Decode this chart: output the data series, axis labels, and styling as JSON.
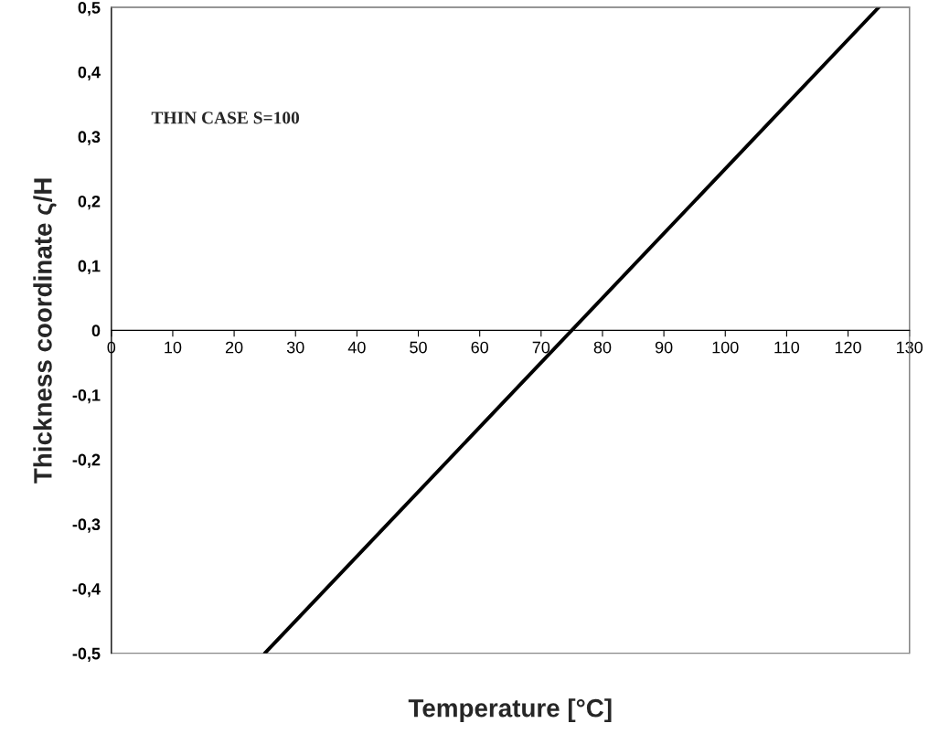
{
  "chart_data": {
    "type": "line",
    "xlabel": "Temperature [°C]",
    "ylabel": "Thickness coordinate ς/H",
    "annotations": [
      "THIN CASE S=100"
    ],
    "x": [
      25,
      125
    ],
    "series": [
      {
        "color": "#000000",
        "values": [
          -0.5,
          0.5
        ]
      }
    ],
    "xlim": [
      0,
      130
    ],
    "xticks": [
      0,
      10,
      20,
      30,
      40,
      50,
      60,
      70,
      80,
      90,
      100,
      110,
      120,
      130
    ],
    "ylim": [
      -0.5,
      0.5
    ],
    "yticks": [
      {
        "value": -0.5,
        "label": "-0,5"
      },
      {
        "value": -0.4,
        "label": "-0,4"
      },
      {
        "value": -0.3,
        "label": "-0,3"
      },
      {
        "value": -0.2,
        "label": "-0,2"
      },
      {
        "value": -0.1,
        "label": "-0,1"
      },
      0,
      {
        "value": 0.1,
        "label": "0,1"
      },
      {
        "value": 0.2,
        "label": "0,2"
      },
      {
        "value": 0.3,
        "label": "0,3"
      },
      {
        "value": 0.4,
        "label": "0,4"
      },
      {
        "value": 0.5,
        "label": "0,5"
      }
    ],
    "grid": false,
    "legend": false,
    "marker": "none",
    "line_style": "solid"
  }
}
